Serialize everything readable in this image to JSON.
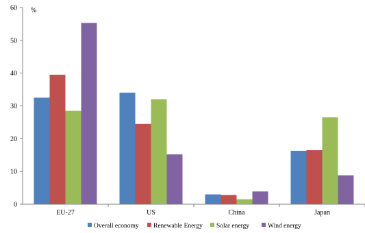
{
  "chart_data": {
    "type": "bar",
    "title": "",
    "xlabel": "",
    "ylabel": "%",
    "ylim": [
      0,
      60
    ],
    "yticks": [
      0,
      10,
      20,
      30,
      40,
      50,
      60
    ],
    "categories": [
      "EU-27",
      "US",
      "China",
      "Japan"
    ],
    "series": [
      {
        "name": "Overall economy",
        "color": "#4F81BD",
        "values": [
          32.5,
          34.0,
          3.0,
          16.3
        ]
      },
      {
        "name": "Renewable Energy",
        "color": "#C0504D",
        "values": [
          39.5,
          24.5,
          2.8,
          16.5
        ]
      },
      {
        "name": "Solar energy",
        "color": "#9BBB59",
        "values": [
          28.5,
          32.0,
          1.5,
          26.5
        ]
      },
      {
        "name": "Wind energy",
        "color": "#8064A2",
        "values": [
          55.3,
          15.2,
          3.9,
          8.8
        ]
      }
    ],
    "grid": false,
    "legend_position": "bottom"
  }
}
